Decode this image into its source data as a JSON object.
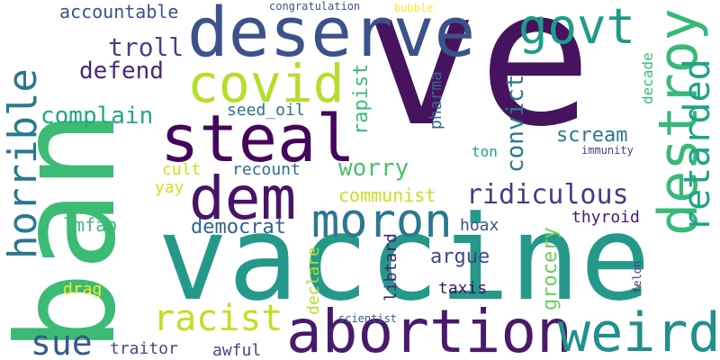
{
  "words": [
    {
      "text": "ve",
      "color": "#46145e"
    },
    {
      "text": "vaccine",
      "color": "#24998a"
    },
    {
      "text": "ban",
      "color": "#3cbb75"
    },
    {
      "text": "deserve",
      "color": "#3b528b"
    },
    {
      "text": "steal",
      "color": "#44055b"
    },
    {
      "text": "abortion",
      "color": "#481a6c"
    },
    {
      "text": "dem",
      "color": "#481467"
    },
    {
      "text": "moron",
      "color": "#2b788e"
    },
    {
      "text": "covid",
      "color": "#b5de2b"
    },
    {
      "text": "destroy",
      "color": "#38b977"
    },
    {
      "text": "weird",
      "color": "#218f8d"
    },
    {
      "text": "horrible",
      "color": "#2a788e"
    },
    {
      "text": "govt",
      "color": "#1e9c89"
    },
    {
      "text": "racist",
      "color": "#c2df23"
    },
    {
      "text": "retarded",
      "color": "#20a386"
    },
    {
      "text": "ridiculous",
      "color": "#433e85"
    },
    {
      "text": "convict",
      "color": "#2a788e"
    },
    {
      "text": "sue",
      "color": "#38598c"
    },
    {
      "text": "worry",
      "color": "#4ac16d"
    },
    {
      "text": "troll",
      "color": "#414487"
    },
    {
      "text": "defend",
      "color": "#482878"
    },
    {
      "text": "complain",
      "color": "#22a884"
    },
    {
      "text": "scream",
      "color": "#2a788e"
    },
    {
      "text": "democrat",
      "color": "#33638d"
    },
    {
      "text": "argue",
      "color": "#3f4889"
    },
    {
      "text": "communist",
      "color": "#c8e020"
    },
    {
      "text": "accountable",
      "color": "#3b528b"
    },
    {
      "text": "rapist",
      "color": "#3cbb75"
    },
    {
      "text": "grocery",
      "color": "#6ece58"
    },
    {
      "text": "seed_oil",
      "color": "#2e6e8e"
    },
    {
      "text": "lmfao",
      "color": "#3cbb75"
    },
    {
      "text": "pharma",
      "color": "#31688e"
    },
    {
      "text": "thyroid",
      "color": "#481b6d"
    },
    {
      "text": "decade",
      "color": "#3cbb75"
    },
    {
      "text": "recount",
      "color": "#2d708e"
    },
    {
      "text": "hoax",
      "color": "#3a548c"
    },
    {
      "text": "taxis",
      "color": "#471164"
    },
    {
      "text": "libtard",
      "color": "#482071"
    },
    {
      "text": "traitor",
      "color": "#3f4889"
    },
    {
      "text": "awful",
      "color": "#3f4889"
    },
    {
      "text": "declare",
      "color": "#b5de2b"
    },
    {
      "text": "cult",
      "color": "#c8e020"
    },
    {
      "text": "yay",
      "color": "#d2e21b"
    },
    {
      "text": "drag",
      "color": "#fde725"
    },
    {
      "text": "ton",
      "color": "#1fa187"
    },
    {
      "text": "immunity",
      "color": "#404688"
    },
    {
      "text": "felon",
      "color": "#46327e"
    },
    {
      "text": "scientist",
      "color": "#365c8d"
    },
    {
      "text": "congratulation",
      "color": "#3b528b"
    },
    {
      "text": "bubble",
      "color": "#fde725"
    }
  ]
}
